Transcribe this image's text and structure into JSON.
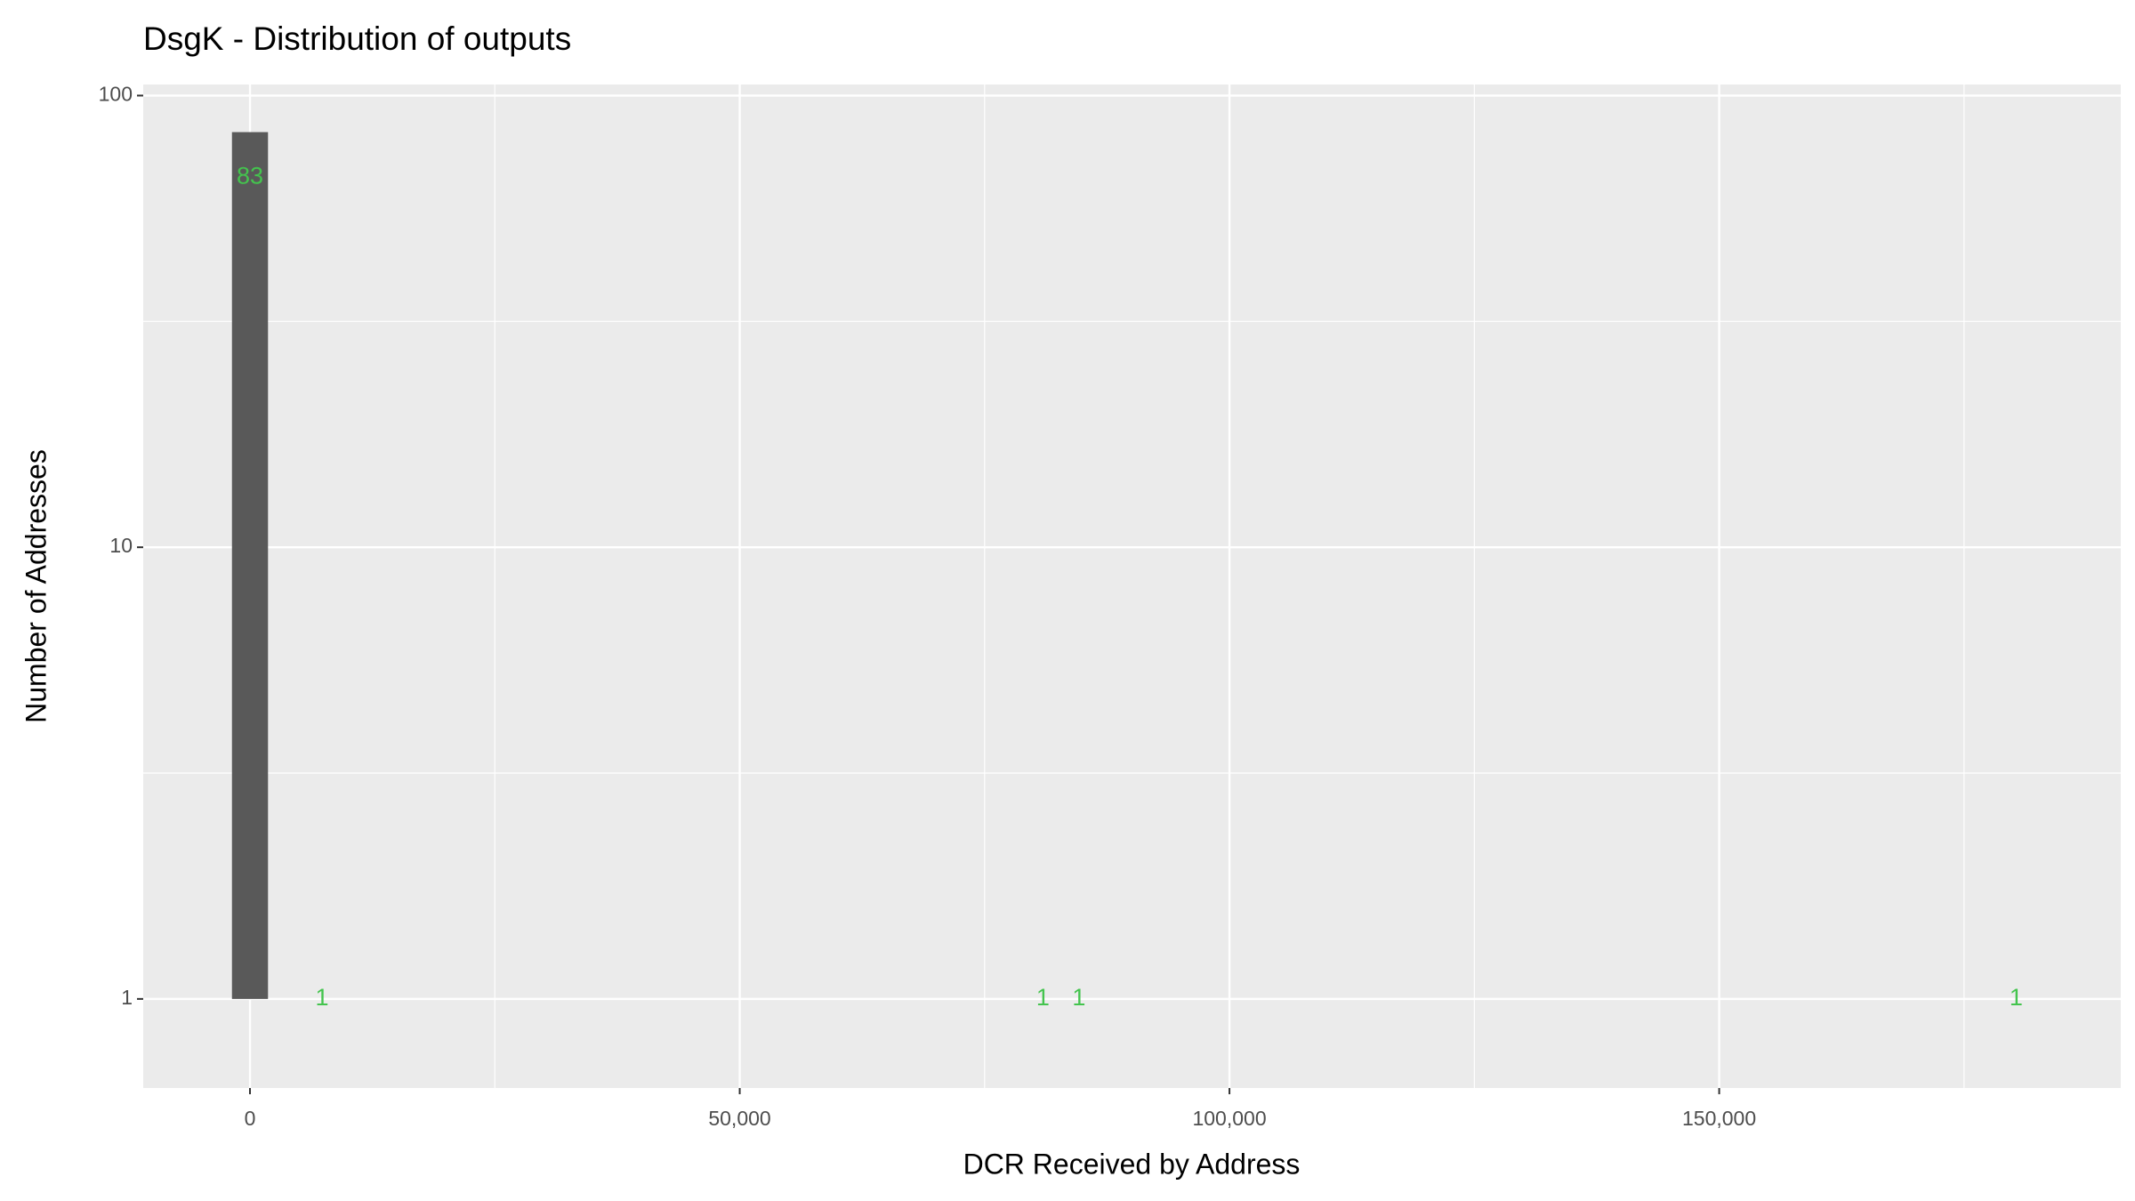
{
  "chart_data": {
    "type": "histogram",
    "title": "DsgK - Distribution of outputs",
    "x_label": "DCR Received by Address",
    "y_label": "Number of Addresses",
    "bins": [
      -1840,
      1840,
      5520,
      9200,
      12880,
      16560,
      20240,
      23920,
      27600,
      31280,
      34960,
      38640,
      42320,
      46000,
      49680,
      53360,
      57040,
      60720,
      64400,
      68080,
      71760,
      75440,
      79120,
      82800,
      86480,
      90160,
      93840,
      97520,
      101200,
      104880,
      108560,
      112240,
      115920,
      119600,
      123280,
      126960,
      130640,
      134320,
      138000,
      141680,
      145360,
      149040,
      152720,
      156400,
      160080,
      163760,
      167440,
      171120,
      174800,
      178480,
      182160
    ],
    "values": [
      83,
      0,
      1,
      0,
      0,
      0,
      0,
      0,
      0,
      0,
      0,
      0,
      0,
      0,
      0,
      0,
      0,
      0,
      0,
      0,
      0,
      0,
      1,
      1,
      0,
      0,
      0,
      0,
      0,
      0,
      0,
      0,
      0,
      0,
      0,
      0,
      0,
      0,
      0,
      0,
      0,
      0,
      0,
      0,
      0,
      0,
      0,
      0,
      0,
      1
    ],
    "color": "#595959",
    "label_color": "#44c44e",
    "xlim": [
      -10900,
      191000
    ],
    "ylim": [
      0.635,
      105.8
    ],
    "y_scale": "log",
    "xticks": [
      0,
      {
        "value": 50000,
        "label": "50,000"
      },
      {
        "value": 100000,
        "label": "100,000"
      },
      {
        "value": 150000,
        "label": "150,000"
      }
    ],
    "yticks": [
      1,
      10,
      100
    ],
    "grid": true
  }
}
